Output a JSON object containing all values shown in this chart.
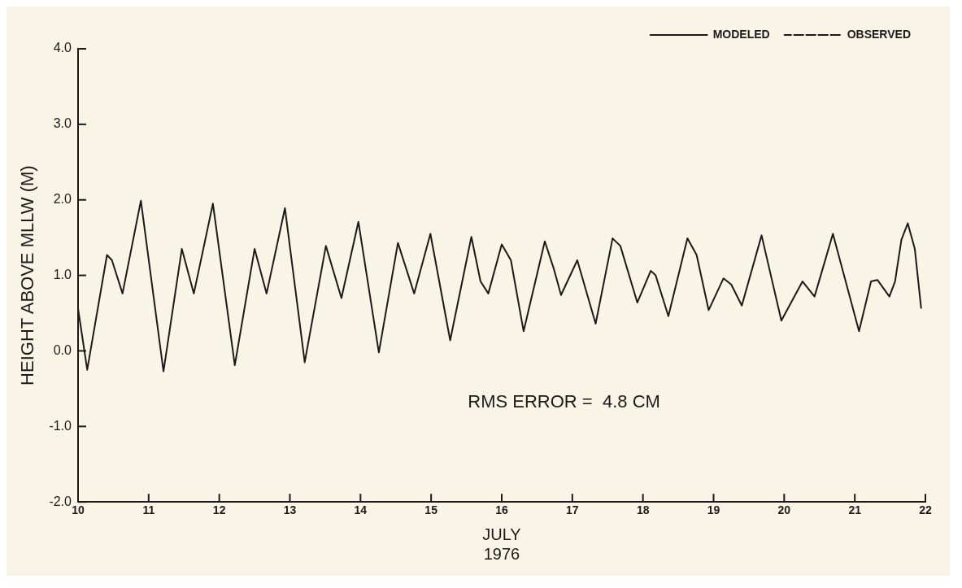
{
  "chart_data": {
    "type": "line",
    "ylabel": "HEIGHT ABOVE MLLW (M)",
    "xlabel": "JULY\n1976",
    "x": [
      10.0,
      10.13,
      10.41,
      10.48,
      10.63,
      10.89,
      11.21,
      11.47,
      11.64,
      11.91,
      12.22,
      12.5,
      12.67,
      12.93,
      13.21,
      13.51,
      13.73,
      13.97,
      14.26,
      14.53,
      14.76,
      14.99,
      15.27,
      15.57,
      15.7,
      15.81,
      16.0,
      16.13,
      16.31,
      16.61,
      16.74,
      16.84,
      17.07,
      17.33,
      17.57,
      17.68,
      17.92,
      18.11,
      18.18,
      18.36,
      18.63,
      18.76,
      18.93,
      19.14,
      19.25,
      19.4,
      19.68,
      19.96,
      20.26,
      20.43,
      20.69,
      21.06,
      21.23,
      21.32,
      21.49,
      21.57,
      21.66,
      21.75,
      21.85,
      21.94
    ],
    "series": [
      {
        "name": "MODELED",
        "color": "#1a1a1a",
        "line_style": "solid",
        "values": [
          0.56,
          -0.25,
          1.27,
          1.2,
          0.76,
          1.99,
          -0.27,
          1.35,
          0.76,
          1.95,
          -0.19,
          1.35,
          0.76,
          1.89,
          -0.15,
          1.39,
          0.7,
          1.71,
          -0.02,
          1.43,
          0.76,
          1.55,
          0.14,
          1.51,
          0.92,
          0.76,
          1.41,
          1.2,
          0.26,
          1.45,
          1.08,
          0.74,
          1.2,
          0.36,
          1.49,
          1.39,
          0.64,
          1.06,
          1.0,
          0.46,
          1.49,
          1.27,
          0.54,
          0.96,
          0.88,
          0.6,
          1.53,
          0.4,
          0.92,
          0.72,
          1.55,
          0.26,
          0.92,
          0.94,
          0.72,
          0.92,
          1.47,
          1.69,
          1.35,
          0.56
        ]
      },
      {
        "name": "OBSERVED",
        "color": "#1a1a1a",
        "line_style": "dashed",
        "values": [
          null,
          null,
          null,
          null,
          null,
          null,
          null,
          null,
          null,
          null,
          null,
          null,
          null,
          null,
          null,
          null,
          null,
          null,
          null,
          null,
          null,
          null,
          null,
          null,
          null,
          null,
          null,
          null,
          null,
          null,
          null,
          null,
          null,
          null,
          null,
          null,
          null,
          null,
          null,
          null,
          null,
          null,
          null,
          null,
          null,
          null,
          null,
          null,
          null,
          null,
          null,
          null,
          null,
          null,
          null,
          null,
          null,
          null,
          null,
          null
        ]
      }
    ],
    "xlim": [
      10,
      22
    ],
    "xticks": [
      10,
      11,
      12,
      13,
      14,
      15,
      16,
      17,
      18,
      19,
      20,
      21,
      22
    ],
    "ylim": [
      -2,
      4
    ],
    "yticks": [
      {
        "value": -2,
        "label": "-2.0"
      },
      {
        "value": -1,
        "label": "-1.0"
      },
      {
        "value": 0,
        "label": "0.0"
      },
      {
        "value": 1,
        "label": "1.0"
      },
      {
        "value": 2,
        "label": "2.0"
      },
      {
        "value": 3,
        "label": "3.0"
      },
      {
        "value": 4,
        "label": "4.0"
      }
    ],
    "grid": false,
    "legend": "top right",
    "marker": "none",
    "annotations": [
      "RMS ERROR =  4.8 CM"
    ]
  }
}
